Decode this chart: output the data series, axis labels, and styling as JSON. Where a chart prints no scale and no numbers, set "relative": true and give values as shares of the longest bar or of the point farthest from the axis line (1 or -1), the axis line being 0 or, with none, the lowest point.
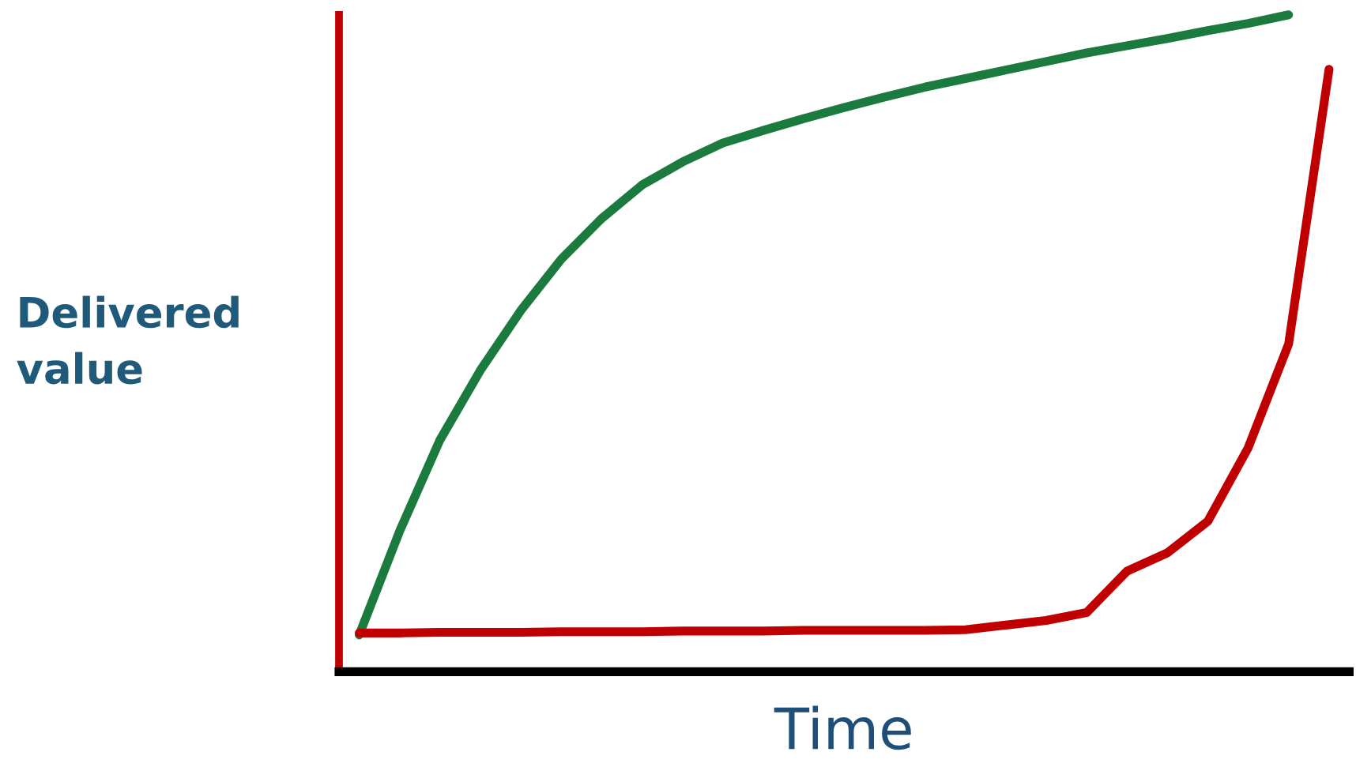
{
  "chart_data": {
    "type": "line",
    "relative": true,
    "xlabel": "Time",
    "ylabel": "Delivered value",
    "legend": false,
    "marker": "none",
    "line_style": "solid",
    "categories": [
      null,
      null,
      null,
      null,
      null,
      null,
      null,
      null,
      null,
      null,
      null,
      null,
      null,
      null,
      null,
      null,
      null,
      null,
      null,
      null,
      null,
      null,
      null,
      null,
      null
    ],
    "series": [
      {
        "color": "#1b7a3e",
        "values": [
          0.056,
          0.214,
          0.353,
          0.459,
          0.55,
          0.628,
          0.69,
          0.741,
          0.776,
          0.805,
          0.824,
          0.842,
          0.859,
          0.875,
          0.89,
          0.903,
          0.916,
          0.929,
          0.942,
          0.953,
          0.964,
          0.976,
          0.987,
          1.0,
          null
        ]
      },
      {
        "color": "#c00000",
        "values": [
          0.059,
          0.059,
          0.06,
          0.06,
          0.06,
          0.061,
          0.061,
          0.061,
          0.062,
          0.062,
          0.062,
          0.063,
          0.063,
          0.063,
          0.063,
          0.064,
          0.071,
          0.078,
          0.09,
          0.153,
          0.181,
          0.229,
          0.341,
          0.499,
          0.917
        ]
      }
    ]
  }
}
